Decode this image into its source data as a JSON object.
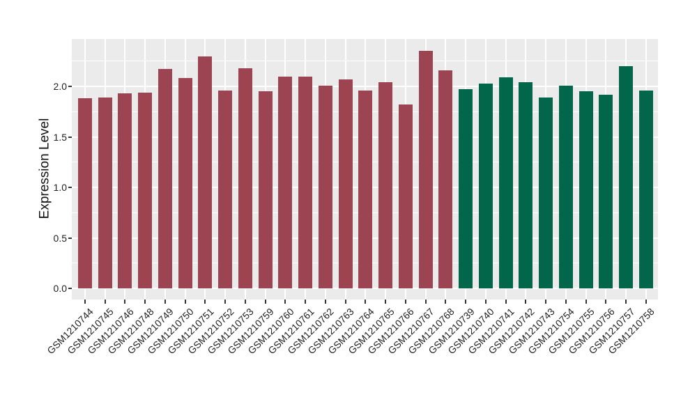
{
  "chart_data": {
    "type": "bar",
    "title": "",
    "xlabel": "",
    "ylabel": "Expression Level",
    "ylim": [
      -0.1,
      2.47
    ],
    "yticks": [
      0.0,
      0.5,
      1.0,
      1.5,
      2.0
    ],
    "ytick_labels": [
      "0.0",
      "0.5",
      "1.0",
      "1.5",
      "2.0"
    ],
    "minor_gridlines": [
      0.25,
      0.75,
      1.25,
      1.75,
      2.25
    ],
    "grid": "white major+minor horizontal lines and major vertical lines on gray panel",
    "legend": "none",
    "panel_bg_color": "#EBEBEB",
    "grid_color": "#FFFFFF",
    "group_colors": {
      "group1": "#9C4451",
      "group2": "#02664A"
    },
    "samples": [
      {
        "label": "GSM1210744",
        "value": 1.88,
        "group": "group1"
      },
      {
        "label": "GSM1210745",
        "value": 1.89,
        "group": "group1"
      },
      {
        "label": "GSM1210746",
        "value": 1.93,
        "group": "group1"
      },
      {
        "label": "GSM1210748",
        "value": 1.94,
        "group": "group1"
      },
      {
        "label": "GSM1210749",
        "value": 2.17,
        "group": "group1"
      },
      {
        "label": "GSM1210750",
        "value": 2.08,
        "group": "group1"
      },
      {
        "label": "GSM1210751",
        "value": 2.3,
        "group": "group1"
      },
      {
        "label": "GSM1210752",
        "value": 1.96,
        "group": "group1"
      },
      {
        "label": "GSM1210753",
        "value": 2.18,
        "group": "group1"
      },
      {
        "label": "GSM1210759",
        "value": 1.95,
        "group": "group1"
      },
      {
        "label": "GSM1210760",
        "value": 2.1,
        "group": "group1"
      },
      {
        "label": "GSM1210761",
        "value": 2.1,
        "group": "group1"
      },
      {
        "label": "GSM1210762",
        "value": 2.01,
        "group": "group1"
      },
      {
        "label": "GSM1210763",
        "value": 2.07,
        "group": "group1"
      },
      {
        "label": "GSM1210764",
        "value": 1.96,
        "group": "group1"
      },
      {
        "label": "GSM1210765",
        "value": 2.04,
        "group": "group1"
      },
      {
        "label": "GSM1210766",
        "value": 1.82,
        "group": "group1"
      },
      {
        "label": "GSM1210767",
        "value": 2.35,
        "group": "group1"
      },
      {
        "label": "GSM1210768",
        "value": 2.16,
        "group": "group1"
      },
      {
        "label": "GSM1210739",
        "value": 1.97,
        "group": "group2"
      },
      {
        "label": "GSM1210740",
        "value": 2.03,
        "group": "group2"
      },
      {
        "label": "GSM1210741",
        "value": 2.09,
        "group": "group2"
      },
      {
        "label": "GSM1210742",
        "value": 2.04,
        "group": "group2"
      },
      {
        "label": "GSM1210743",
        "value": 1.89,
        "group": "group2"
      },
      {
        "label": "GSM1210754",
        "value": 2.01,
        "group": "group2"
      },
      {
        "label": "GSM1210755",
        "value": 1.95,
        "group": "group2"
      },
      {
        "label": "GSM1210756",
        "value": 1.92,
        "group": "group2"
      },
      {
        "label": "GSM1210757",
        "value": 2.2,
        "group": "group2"
      },
      {
        "label": "GSM1210758",
        "value": 1.96,
        "group": "group2"
      }
    ]
  }
}
